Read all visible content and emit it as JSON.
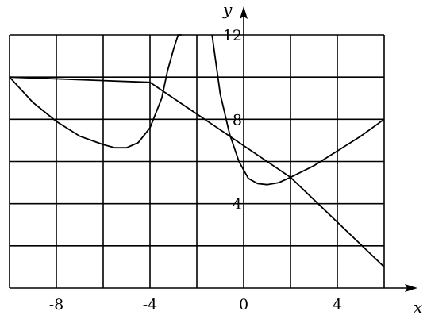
{
  "chart_data": {
    "type": "line",
    "xlabel": "x",
    "ylabel": "y",
    "xlim": [
      -10,
      6
    ],
    "ylim": [
      0,
      12
    ],
    "x_tick_labels": [
      {
        "value": -8,
        "label": "-8"
      },
      {
        "value": -4,
        "label": "-4"
      },
      {
        "value": 0,
        "label": "0"
      },
      {
        "value": 4,
        "label": "4"
      }
    ],
    "y_tick_labels": [
      {
        "value": 4,
        "label": "4"
      },
      {
        "value": 8,
        "label": "8"
      },
      {
        "value": 12,
        "label": "12"
      }
    ],
    "grid": true,
    "grid_step": {
      "x": 2,
      "y": 2
    },
    "series": [
      {
        "kind": "line",
        "x": [
          -10,
          -4,
          2,
          6
        ],
        "y": [
          10.0,
          9.75,
          5.25,
          1.0
        ]
      },
      {
        "kind": "curve_left_branch",
        "x": [
          -10,
          -9,
          -8,
          -7,
          -6,
          -5.5,
          -5,
          -4.5,
          -4,
          -3.5,
          -3.25,
          -3.0,
          -2.8,
          -2.65
        ],
        "y": [
          10.0,
          8.8,
          7.9,
          7.2,
          6.8,
          6.65,
          6.65,
          6.9,
          7.6,
          9.0,
          10.3,
          11.3,
          12.0,
          12.0
        ]
      },
      {
        "kind": "curve_right_branch",
        "x": [
          -1.35,
          -1.2,
          -1.0,
          -0.6,
          -0.2,
          0.2,
          0.6,
          1.0,
          1.5,
          2.0,
          3.0,
          4.0,
          5.0,
          6.0
        ],
        "y": [
          12.0,
          10.8,
          9.2,
          7.3,
          6.0,
          5.2,
          4.95,
          4.9,
          5.0,
          5.25,
          5.8,
          6.5,
          7.2,
          8.0
        ]
      }
    ]
  }
}
